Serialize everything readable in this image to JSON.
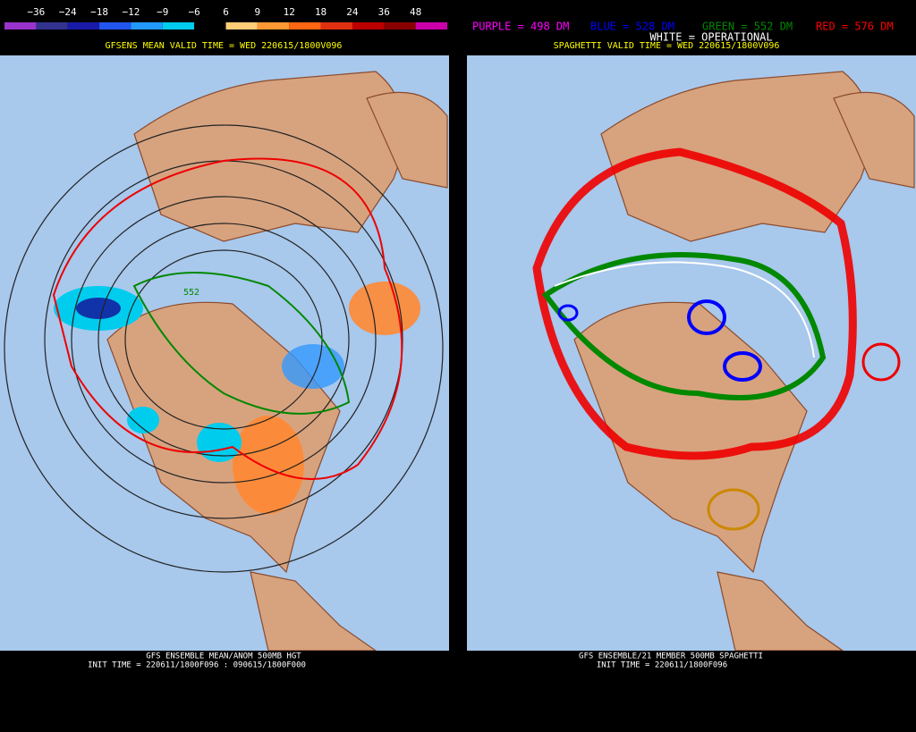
{
  "left": {
    "colorbar": [
      "−36",
      "−24",
      "−18",
      "−12",
      "−9",
      "−6",
      "6",
      "9",
      "12",
      "18",
      "24",
      "36",
      "48"
    ],
    "header": "GFSENS MEAN VALID TIME = WED 220615/1800V096",
    "contour_label": "552",
    "footer": [
      "GFS ENSEMBLE MEAN/ANOM 500MB HGT",
      "INIT TIME = 220611/1800F096 : 090615/1800F000"
    ]
  },
  "right": {
    "legend": [
      "PURPLE = 498 DM",
      "BLUE = 528 DM",
      "GREEN = 552 DM",
      "RED = 576 DM"
    ],
    "operational": "WHITE = OPERATIONAL",
    "header": "SPAGHETTI VALID TIME = WED 220615/1800V096",
    "footer": [
      "GFS ENSEMBLE/21 MEMBER 500MB SPAGHETTI",
      "INIT TIME = 220611/1800F096"
    ]
  }
}
